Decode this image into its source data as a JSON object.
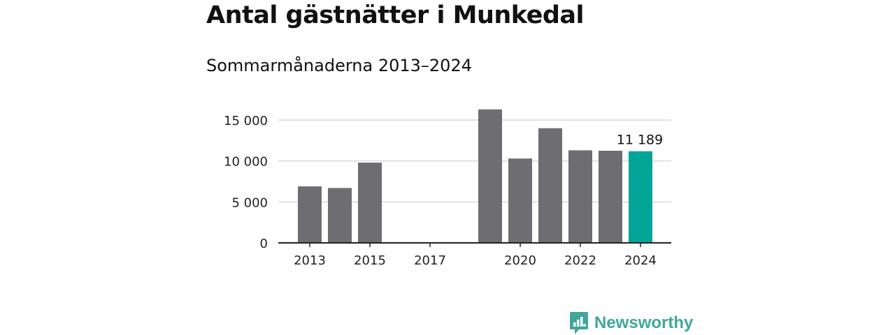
{
  "header": {
    "title": "Antal gästnätter i Munkedal",
    "subtitle": "Sommarmånaderna 2013–2024"
  },
  "brand": {
    "name": "Newsworthy",
    "icon": "newsworthy-logo-icon",
    "color": "#3fa79a"
  },
  "colors": {
    "bar": "#6e6d72",
    "highlight": "#00a597",
    "grid": "#d9d9d9",
    "axis": "#222222"
  },
  "chart_data": {
    "type": "bar",
    "categories": [
      "2013",
      "2014",
      "2015",
      "2016",
      "2017",
      "2018",
      "2019",
      "2020",
      "2021",
      "2022",
      "2023",
      "2024"
    ],
    "values": [
      6900,
      6700,
      9800,
      null,
      null,
      null,
      16300,
      10300,
      14000,
      11300,
      11250,
      11189
    ],
    "highlight_index": 11,
    "data_labels": [
      {
        "index": 11,
        "text": "11 189"
      }
    ],
    "x_tick_labels": [
      "2013",
      "2015",
      "2017",
      "2020",
      "2022",
      "2024"
    ],
    "y_ticks": [
      0,
      5000,
      10000,
      15000
    ],
    "y_tick_labels": [
      "0",
      "5 000",
      "10 000",
      "15 000"
    ],
    "ylim": [
      0,
      16300
    ],
    "grid": true,
    "xlabel": "",
    "ylabel": ""
  }
}
